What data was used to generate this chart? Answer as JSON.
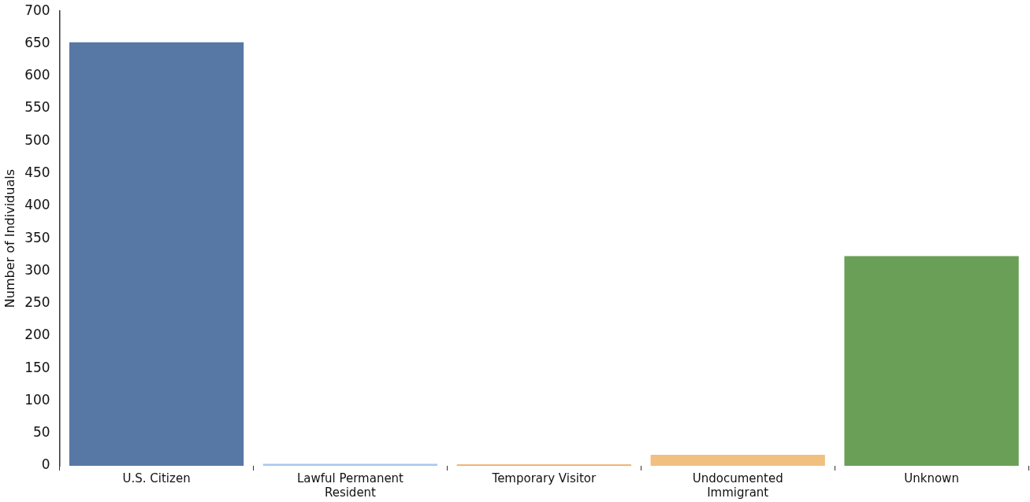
{
  "chart_data": {
    "type": "bar",
    "ylabel": "Number of Individuals",
    "categories": [
      "U.S. Citizen",
      "Lawful Permanent Resident",
      "Temporary Visitor",
      "Undocumented Immigrant",
      "Unknown"
    ],
    "values": [
      652,
      3,
      2,
      17,
      323
    ],
    "colors": [
      "#5778a4",
      "#a8c8ec",
      "#f1a85b",
      "#f1c080",
      "#6a9f58"
    ],
    "ylim": [
      0,
      700
    ],
    "yticks": [
      0,
      50,
      100,
      150,
      200,
      250,
      300,
      350,
      400,
      450,
      500,
      550,
      600,
      650,
      700
    ],
    "grid": false,
    "legend": false
  }
}
